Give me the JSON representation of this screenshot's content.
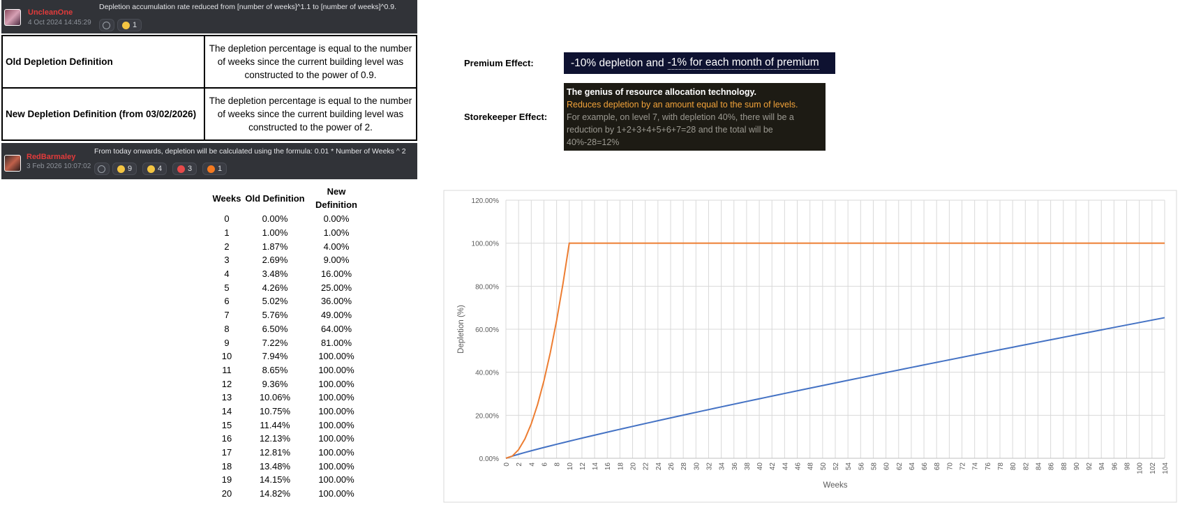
{
  "messages": [
    {
      "author": "UncleanOne",
      "timestamp": "4 Oct 2024 14:45:29",
      "text": "Depletion accumulation rate reduced from [number of weeks]^1.1 to [number of weeks]^0.9.",
      "reactions": [
        1
      ]
    },
    {
      "author": "RedBarmaley",
      "timestamp": "3 Feb 2026 10:07:02",
      "text": "From today onwards, depletion will be calculated using the formula: 0.01 * Number of Weeks ^ 2",
      "reactions": [
        9,
        4,
        3,
        1
      ]
    }
  ],
  "definitions": {
    "rows": [
      [
        "Old Depletion Definition",
        "The depletion percentage is equal to the number of weeks since the current building level was constructed to the power of 0.9."
      ],
      [
        "New Depletion Definition (from 03/02/2026)",
        "The depletion percentage is equal to the number of weeks since the current building level was constructed to the power of 2."
      ]
    ]
  },
  "effects": {
    "premium": {
      "label": "Premium Effect:",
      "text": [
        "-10% depletion and",
        "-1% for each month of premium"
      ]
    },
    "storekeeper": {
      "label": "Storekeeper Effect:",
      "title": "The genius of resource allocation technology.",
      "description": "Reduces depletion by an amount equal to the sum of levels.",
      "example": "For example, on level 7, with depletion 40%, there will be a reduction by 1+2+3+4+5+6+7=28 and the total will be 40%-28=12%"
    }
  },
  "weeks_table": {
    "header": [
      "Weeks",
      "Old Definition",
      "New Definition"
    ],
    "rows": [
      [
        "0",
        "0.00%",
        "0.00%"
      ],
      [
        "1",
        "1.00%",
        "1.00%"
      ],
      [
        "2",
        "1.87%",
        "4.00%"
      ],
      [
        "3",
        "2.69%",
        "9.00%"
      ],
      [
        "4",
        "3.48%",
        "16.00%"
      ],
      [
        "5",
        "4.26%",
        "25.00%"
      ],
      [
        "6",
        "5.02%",
        "36.00%"
      ],
      [
        "7",
        "5.76%",
        "49.00%"
      ],
      [
        "8",
        "6.50%",
        "64.00%"
      ],
      [
        "9",
        "7.22%",
        "81.00%"
      ],
      [
        "10",
        "7.94%",
        "100.00%"
      ],
      [
        "11",
        "8.65%",
        "100.00%"
      ],
      [
        "12",
        "9.36%",
        "100.00%"
      ],
      [
        "13",
        "10.06%",
        "100.00%"
      ],
      [
        "14",
        "10.75%",
        "100.00%"
      ],
      [
        "15",
        "11.44%",
        "100.00%"
      ],
      [
        "16",
        "12.13%",
        "100.00%"
      ],
      [
        "17",
        "12.81%",
        "100.00%"
      ],
      [
        "18",
        "13.48%",
        "100.00%"
      ],
      [
        "19",
        "14.15%",
        "100.00%"
      ],
      [
        "20",
        "14.82%",
        "100.00%"
      ]
    ]
  },
  "chart_data": {
    "type": "line",
    "x_label": "Weeks",
    "y_label": "Depletion (%)",
    "grid": true,
    "x": [
      0,
      1,
      2,
      3,
      4,
      5,
      6,
      7,
      8,
      9,
      10,
      11,
      12,
      13,
      14,
      15,
      16,
      17,
      18,
      19,
      20,
      21,
      22,
      23,
      24,
      25,
      26,
      27,
      28,
      29,
      30,
      31,
      32,
      33,
      34,
      35,
      36,
      37,
      38,
      39,
      40,
      41,
      42,
      43,
      44,
      45,
      46,
      47,
      48,
      49,
      50,
      51,
      52,
      53,
      54,
      55,
      56,
      57,
      58,
      59,
      60,
      61,
      62,
      63,
      64,
      65,
      66,
      67,
      68,
      69,
      70,
      71,
      72,
      73,
      74,
      75,
      76,
      77,
      78,
      79,
      80,
      81,
      82,
      83,
      84,
      85,
      86,
      87,
      88,
      89,
      90,
      91,
      92,
      93,
      94,
      95,
      96,
      97,
      98,
      99,
      100,
      101,
      102,
      103,
      104
    ],
    "xlim": [
      0,
      104
    ],
    "xticks": [
      0,
      2,
      4,
      6,
      8,
      10,
      12,
      14,
      16,
      18,
      20,
      22,
      24,
      26,
      28,
      30,
      32,
      34,
      36,
      38,
      40,
      42,
      44,
      46,
      48,
      50,
      52,
      54,
      56,
      58,
      60,
      62,
      64,
      66,
      68,
      70,
      72,
      74,
      76,
      78,
      80,
      82,
      84,
      86,
      88,
      90,
      92,
      94,
      96,
      98,
      100,
      102,
      104
    ],
    "ylim": [
      0,
      120
    ],
    "yticks": [
      {
        "value": 0,
        "label": "0.00%"
      },
      {
        "value": 20,
        "label": "20.00%"
      },
      {
        "value": 40,
        "label": "40.00%"
      },
      {
        "value": 60,
        "label": "60.00%"
      },
      {
        "value": 80,
        "label": "80.00%"
      },
      {
        "value": 100,
        "label": "100.00%"
      },
      {
        "value": 120,
        "label": "120.00%"
      }
    ],
    "series": [
      {
        "color": "#4472c4",
        "values": [
          0,
          1,
          1.87,
          2.69,
          3.48,
          4.26,
          5.02,
          5.76,
          6.5,
          7.22,
          7.94,
          8.65,
          9.36,
          10.06,
          10.75,
          11.44,
          12.13,
          12.81,
          13.48,
          14.15,
          14.82,
          15.49,
          16.15,
          16.81,
          17.47,
          18.12,
          18.77,
          19.42,
          20.07,
          20.71,
          21.35,
          21.99,
          22.63,
          23.26,
          23.9,
          24.53,
          25.16,
          25.79,
          26.41,
          27.04,
          27.66,
          28.28,
          28.9,
          29.52,
          30.14,
          30.75,
          31.37,
          31.98,
          32.59,
          33.2,
          33.81,
          34.42,
          35.03,
          35.63,
          36.24,
          36.84,
          37.44,
          38.04,
          38.65,
          39.24,
          39.84,
          40.44,
          41.03,
          41.63,
          42.22,
          42.82,
          43.41,
          44,
          44.59,
          45.18,
          45.77,
          46.36,
          46.95,
          47.54,
          48.12,
          48.71,
          49.29,
          49.88,
          50.46,
          51.04,
          51.62,
          52.21,
          52.79,
          53.36,
          53.94,
          54.52,
          55.1,
          55.67,
          56.25,
          56.82,
          57.4,
          57.97,
          58.54,
          59.12,
          59.69,
          60.26,
          60.83,
          61.4,
          61.97,
          62.54,
          63.1,
          63.67,
          64.24,
          64.8,
          65.37
        ]
      },
      {
        "color": "#ed7d31",
        "values": [
          0,
          1,
          4,
          9,
          16,
          25,
          36,
          49,
          64,
          81,
          100,
          100,
          100,
          100,
          100,
          100,
          100,
          100,
          100,
          100,
          100,
          100,
          100,
          100,
          100,
          100,
          100,
          100,
          100,
          100,
          100,
          100,
          100,
          100,
          100,
          100,
          100,
          100,
          100,
          100,
          100,
          100,
          100,
          100,
          100,
          100,
          100,
          100,
          100,
          100,
          100,
          100,
          100,
          100,
          100,
          100,
          100,
          100,
          100,
          100,
          100,
          100,
          100,
          100,
          100,
          100,
          100,
          100,
          100,
          100,
          100,
          100,
          100,
          100,
          100,
          100,
          100,
          100,
          100,
          100,
          100,
          100,
          100,
          100,
          100,
          100,
          100,
          100,
          100,
          100,
          100,
          100,
          100,
          100,
          100,
          100,
          100,
          100,
          100,
          100,
          100,
          100,
          100,
          100,
          100
        ]
      }
    ]
  }
}
